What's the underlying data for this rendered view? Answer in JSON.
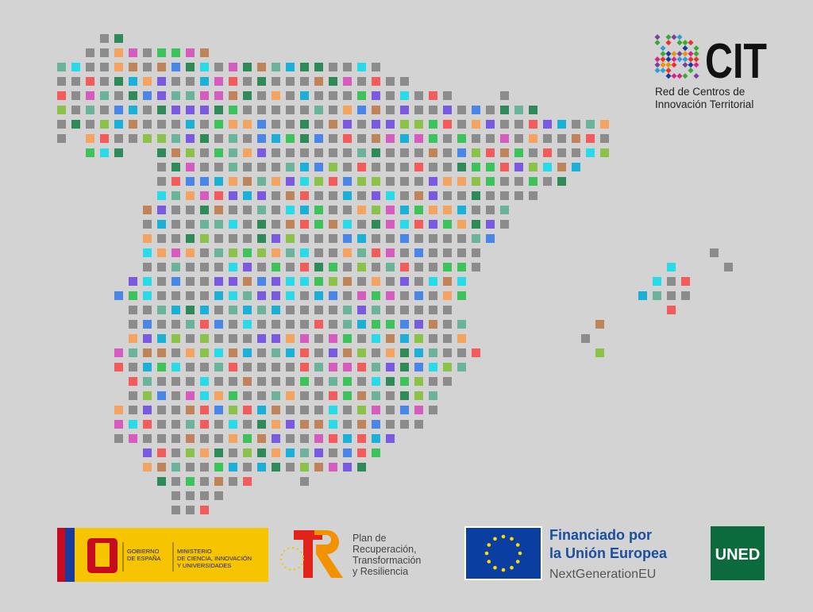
{
  "header": {
    "logo_text": "CIT",
    "subtitle_lines": [
      "Red de Centros de",
      "Innovación Territorial"
    ]
  },
  "footer": {
    "government": {
      "left_lines": [
        "GOBIERNO",
        "DE ESPAÑA"
      ],
      "right_lines": [
        "MINISTERIO",
        "DE CIENCIA, INNOVACIÓN",
        "Y UNIVERSIDADES"
      ]
    },
    "recovery_plan": {
      "lines": [
        "Plan de",
        "Recuperación,",
        "Transformación",
        "y Resiliencia"
      ]
    },
    "eu": {
      "lines": [
        "Financiado por",
        "la Unión Europea"
      ],
      "program": "NextGenerationEU"
    },
    "university": {
      "name": "UNED"
    }
  }
}
